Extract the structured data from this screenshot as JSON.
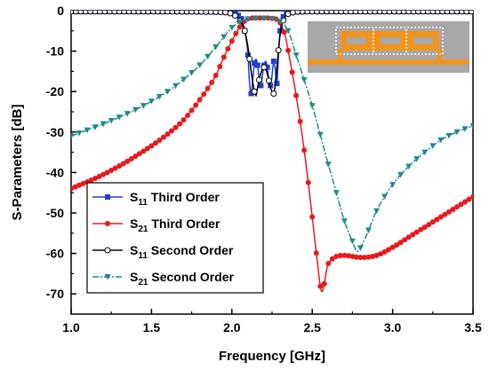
{
  "chart_data": {
    "type": "line",
    "xlabel": "Frequency [GHz]",
    "ylabel": "S-Parameters [dB]",
    "xlim": [
      1.0,
      3.5
    ],
    "ylim": [
      -75,
      0
    ],
    "x_ticks": [
      1.0,
      1.5,
      2.0,
      2.5,
      3.0,
      3.5
    ],
    "y_ticks": [
      0,
      -10,
      -20,
      -30,
      -40,
      -50,
      -60,
      -70
    ],
    "x_tick_labels": [
      "1.0",
      "1.5",
      "2.0",
      "2.5",
      "3.0",
      "3.5"
    ],
    "y_tick_labels": [
      "0",
      "-10",
      "-20",
      "-30",
      "-40",
      "-50",
      "-60",
      "-70"
    ],
    "grid": false,
    "legend_position": "bottom-left",
    "inset": "filter-layout-photo",
    "series": [
      {
        "name": "S11 Third Order",
        "label_main": "S",
        "label_sub": "11",
        "label_rest": "Third Order",
        "color": "#1f3fd6",
        "marker": "square",
        "x": [
          1.0,
          1.5,
          1.9,
          2.0,
          2.03,
          2.06,
          2.08,
          2.1,
          2.11,
          2.12,
          2.13,
          2.14,
          2.15,
          2.16,
          2.17,
          2.18,
          2.19,
          2.2,
          2.21,
          2.22,
          2.23,
          2.24,
          2.25,
          2.26,
          2.27,
          2.28,
          2.29,
          2.3,
          2.32,
          2.34,
          2.4,
          2.5,
          3.0,
          3.5
        ],
        "y": [
          -0.2,
          -0.2,
          -0.3,
          -0.5,
          -1.0,
          -2.0,
          -5.0,
          -11.0,
          -18.0,
          -20.5,
          -17.0,
          -13.0,
          -12.0,
          -13.5,
          -17.0,
          -18.5,
          -16.0,
          -13.5,
          -12.5,
          -14.0,
          -17.0,
          -18.5,
          -16.0,
          -12.5,
          -14.5,
          -18.0,
          -11.0,
          -5.0,
          -1.5,
          -0.6,
          -0.3,
          -0.2,
          -0.2,
          -0.2
        ]
      },
      {
        "name": "S21 Third Order",
        "label_main": "S",
        "label_sub": "21",
        "label_rest": "Third Order",
        "color": "#e8191c",
        "marker": "circle",
        "x": [
          1.0,
          1.2,
          1.4,
          1.6,
          1.7,
          1.8,
          1.9,
          1.95,
          2.0,
          2.05,
          2.08,
          2.1,
          2.15,
          2.2,
          2.25,
          2.28,
          2.3,
          2.33,
          2.36,
          2.4,
          2.45,
          2.5,
          2.53,
          2.56,
          2.6,
          2.7,
          2.8,
          2.9,
          3.0,
          3.1,
          3.2,
          3.3,
          3.4,
          3.5
        ],
        "y": [
          -44.0,
          -40.5,
          -36.0,
          -30.5,
          -27.0,
          -22.0,
          -16.0,
          -11.5,
          -7.5,
          -4.0,
          -2.5,
          -2.0,
          -1.8,
          -1.8,
          -1.9,
          -2.2,
          -3.0,
          -6.0,
          -12.0,
          -21.0,
          -34.5,
          -51.0,
          -61.5,
          -69.5,
          -62.5,
          -60.5,
          -61.0,
          -60.5,
          -58.5,
          -56.0,
          -53.5,
          -51.0,
          -48.5,
          -46.0
        ]
      },
      {
        "name": "S11 Second Order",
        "label_main": "S",
        "label_sub": "11",
        "label_rest": "Second Order",
        "color": "#000000",
        "marker": "circle-open",
        "x": [
          1.0,
          1.5,
          1.9,
          2.0,
          2.05,
          2.08,
          2.1,
          2.12,
          2.14,
          2.15,
          2.16,
          2.18,
          2.2,
          2.21,
          2.22,
          2.24,
          2.26,
          2.28,
          2.3,
          2.33,
          2.36,
          2.4,
          2.5,
          3.0,
          3.5
        ],
        "y": [
          -0.2,
          -0.2,
          -0.3,
          -0.8,
          -2.5,
          -5.0,
          -9.0,
          -15.0,
          -20.0,
          -21.0,
          -19.0,
          -15.5,
          -14.0,
          -14.5,
          -15.5,
          -19.0,
          -20.5,
          -14.0,
          -6.0,
          -1.5,
          -0.7,
          -0.3,
          -0.2,
          -0.2,
          -0.2
        ]
      },
      {
        "name": "S21 Second Order",
        "label_main": "S",
        "label_sub": "21",
        "label_rest": "Second Order",
        "color": "#1f8a8a",
        "marker": "triangle-down",
        "x": [
          1.0,
          1.2,
          1.4,
          1.6,
          1.7,
          1.8,
          1.9,
          1.95,
          2.0,
          2.05,
          2.1,
          2.15,
          2.2,
          2.25,
          2.3,
          2.35,
          2.4,
          2.5,
          2.6,
          2.65,
          2.7,
          2.75,
          2.78,
          2.82,
          2.9,
          3.0,
          3.1,
          3.2,
          3.3,
          3.4,
          3.5
        ],
        "y": [
          -31.0,
          -28.0,
          -24.5,
          -20.0,
          -17.0,
          -13.5,
          -9.0,
          -6.5,
          -4.2,
          -2.8,
          -2.1,
          -1.9,
          -1.9,
          -2.0,
          -2.6,
          -5.0,
          -11.0,
          -23.5,
          -38.0,
          -45.0,
          -52.0,
          -57.0,
          -59.5,
          -57.0,
          -49.5,
          -43.0,
          -38.5,
          -35.0,
          -32.0,
          -30.0,
          -28.5
        ]
      }
    ]
  }
}
